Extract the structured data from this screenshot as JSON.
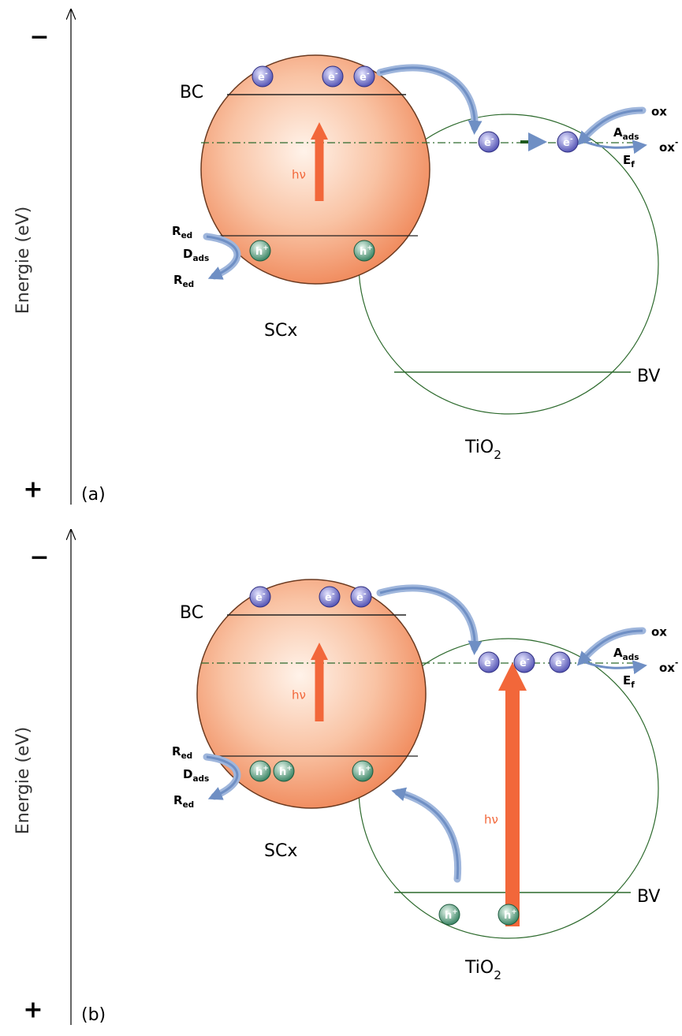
{
  "labels": {
    "axis": "Energie (eV)",
    "minus": "−",
    "plus": "+",
    "bc": "BC",
    "bv": "BV",
    "sc": "SCx",
    "tio": "TiO",
    "tio_sub": "2",
    "hv": "hν",
    "e": "e",
    "e_sup": "-",
    "h": "h",
    "h_sup": "+",
    "red": "R",
    "red_sub": "ed",
    "d": "D",
    "d_sub": "ads",
    "a": "A",
    "a_sub": "ads",
    "ef": "E",
    "ef_sub": "f",
    "ox": "ox",
    "ox_minus": "-"
  },
  "panels": [
    {
      "tag": "(a)"
    },
    {
      "tag": "(b)"
    }
  ]
}
